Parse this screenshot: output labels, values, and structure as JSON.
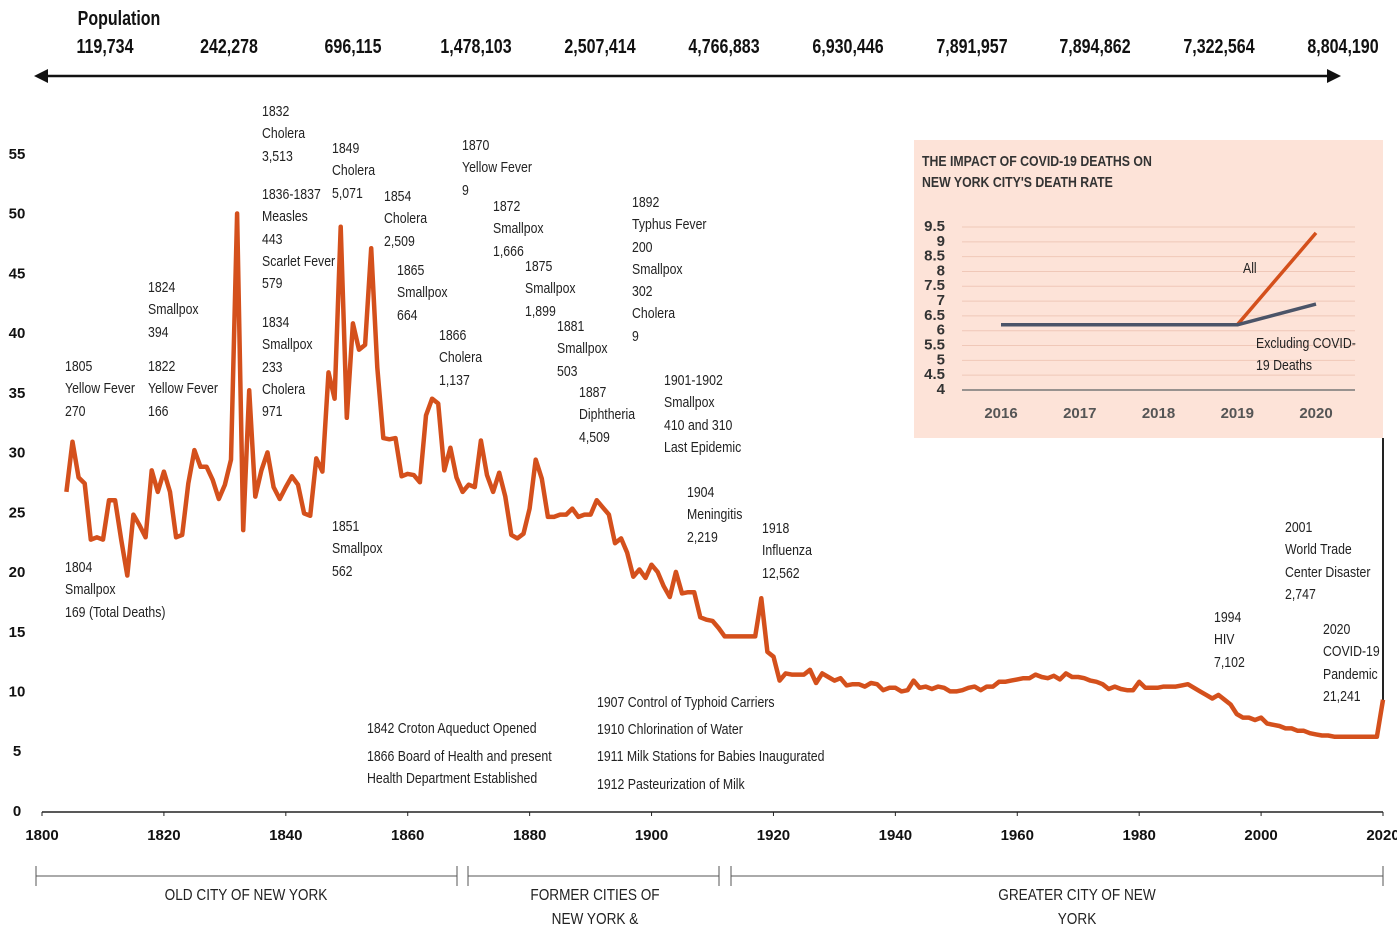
{
  "chart_data": [
    {
      "type": "line",
      "xlim": [
        1800,
        2020
      ],
      "ylim": [
        0,
        55
      ],
      "xticks": [
        1800,
        1820,
        1840,
        1860,
        1880,
        1900,
        1920,
        1940,
        1960,
        1980,
        2000,
        2020
      ],
      "yticks": [
        0,
        5,
        10,
        15,
        20,
        25,
        30,
        35,
        40,
        45,
        50,
        55
      ],
      "grid": false,
      "x": [
        1804,
        1805,
        1806,
        1807,
        1808,
        1809,
        1810,
        1811,
        1812,
        1813,
        1814,
        1815,
        1816,
        1817,
        1818,
        1819,
        1820,
        1821,
        1822,
        1823,
        1824,
        1825,
        1826,
        1827,
        1828,
        1829,
        1830,
        1831,
        1832,
        1833,
        1834,
        1835,
        1836,
        1837,
        1838,
        1839,
        1840,
        1841,
        1842,
        1843,
        1844,
        1845,
        1846,
        1847,
        1848,
        1849,
        1850,
        1851,
        1852,
        1853,
        1854,
        1855,
        1856,
        1857,
        1858,
        1859,
        1860,
        1861,
        1862,
        1863,
        1864,
        1865,
        1866,
        1867,
        1868,
        1869,
        1870,
        1871,
        1872,
        1873,
        1874,
        1875,
        1876,
        1877,
        1878,
        1879,
        1880,
        1881,
        1882,
        1883,
        1884,
        1885,
        1886,
        1887,
        1888,
        1889,
        1890,
        1891,
        1892,
        1893,
        1894,
        1895,
        1896,
        1897,
        1898,
        1899,
        1900,
        1901,
        1902,
        1903,
        1904,
        1905,
        1906,
        1907,
        1908,
        1909,
        1910,
        1911,
        1912,
        1913,
        1914,
        1915,
        1916,
        1917,
        1918,
        1919,
        1920,
        1921,
        1922,
        1923,
        1924,
        1925,
        1926,
        1927,
        1928,
        1929,
        1930,
        1931,
        1932,
        1933,
        1934,
        1935,
        1936,
        1937,
        1938,
        1939,
        1940,
        1941,
        1942,
        1943,
        1944,
        1945,
        1946,
        1947,
        1948,
        1949,
        1950,
        1951,
        1952,
        1953,
        1954,
        1955,
        1956,
        1957,
        1958,
        1959,
        1960,
        1961,
        1962,
        1963,
        1964,
        1965,
        1966,
        1967,
        1968,
        1969,
        1970,
        1971,
        1972,
        1973,
        1974,
        1975,
        1976,
        1977,
        1978,
        1979,
        1980,
        1981,
        1982,
        1983,
        1984,
        1985,
        1986,
        1987,
        1988,
        1989,
        1990,
        1991,
        1992,
        1993,
        1994,
        1995,
        1996,
        1997,
        1998,
        1999,
        2000,
        2001,
        2002,
        2003,
        2004,
        2005,
        2006,
        2007,
        2008,
        2009,
        2010,
        2011,
        2012,
        2013,
        2014,
        2015,
        2016,
        2017,
        2018,
        2019,
        2020
      ],
      "series": [
        {
          "color": "#d4501c",
          "values": [
            26.8,
            31,
            28,
            27.5,
            22.8,
            23,
            22.8,
            26.1,
            26.1,
            22.8,
            19.8,
            24.9,
            24,
            23,
            28.6,
            26.8,
            28.5,
            26.8,
            23,
            23.2,
            27.5,
            30.3,
            28.9,
            28.9,
            27.8,
            26.2,
            27.4,
            29.5,
            50.1,
            23.6,
            35.3,
            26.4,
            28.6,
            30.1,
            27.2,
            26.2,
            27.2,
            28.1,
            27.4,
            25,
            24.8,
            29.6,
            28.5,
            36.8,
            34.6,
            49,
            33,
            40.9,
            38.7,
            39.1,
            47.2,
            37.2,
            31.3,
            31.2,
            31.3,
            28.1,
            28.3,
            28.2,
            27.6,
            33.2,
            34.6,
            34.2,
            28.6,
            30.5,
            28,
            26.8,
            27.4,
            27.2,
            31.1,
            28.2,
            26.8,
            28.4,
            26.4,
            23.2,
            22.9,
            23.3,
            25.4,
            29.5,
            27.9,
            24.7,
            24.7,
            24.9,
            24.9,
            25.4,
            24.7,
            24.9,
            24.9,
            26.1,
            25.5,
            24.9,
            22.5,
            22.9,
            21.7,
            19.7,
            20.3,
            19.6,
            20.7,
            20.1,
            18.9,
            18,
            20.1,
            18.3,
            18.4,
            18.4,
            16.3,
            16.1,
            16,
            15.4,
            14.7,
            14.7,
            14.7,
            14.7,
            14.7,
            14.7,
            17.9,
            13.4,
            13,
            11,
            11.6,
            11.5,
            11.5,
            11.5,
            11.9,
            10.8,
            11.6,
            11.3,
            11,
            11.2,
            10.6,
            10.7,
            10.7,
            10.5,
            10.8,
            10.7,
            10.2,
            10.4,
            10.4,
            10.1,
            10.2,
            11,
            10.4,
            10.5,
            10.3,
            10.5,
            10.4,
            10.1,
            10.1,
            10.2,
            10.4,
            10.5,
            10.2,
            10.5,
            10.5,
            10.9,
            10.9,
            11,
            11.1,
            11.2,
            11.2,
            11.5,
            11.3,
            11.2,
            11.4,
            11.1,
            11.6,
            11.3,
            11.3,
            11.2,
            11,
            10.9,
            10.7,
            10.3,
            10.5,
            10.3,
            10.2,
            10.2,
            10.9,
            10.4,
            10.4,
            10.4,
            10.5,
            10.5,
            10.5,
            10.6,
            10.7,
            10.4,
            10.1,
            9.8,
            9.5,
            9.8,
            9.4,
            9,
            8.2,
            7.9,
            7.9,
            7.7,
            7.9,
            7.4,
            7.3,
            7.2,
            7,
            7,
            6.8,
            6.8,
            6.6,
            6.5,
            6.4,
            6.4,
            6.3,
            6.3,
            6.3,
            6.3,
            6.3,
            6.3,
            6.3,
            6.3,
            9.4
          ]
        }
      ]
    },
    {
      "type": "line",
      "title": [
        "THE IMPACT OF COVID-19 DEATHS ON",
        "NEW YORK CITY'S DEATH RATE"
      ],
      "categories": [
        "2016",
        "2017",
        "2018",
        "2019",
        "2020"
      ],
      "ylim": [
        4,
        9.5
      ],
      "yticks": [
        4,
        4.5,
        5,
        5.5,
        6,
        6.5,
        7,
        7.5,
        8,
        8.5,
        9,
        9.5
      ],
      "grid": true,
      "series": [
        {
          "name": "All",
          "color": "#d4501c",
          "values": [
            6.2,
            6.2,
            6.2,
            6.2,
            9.3
          ]
        },
        {
          "name": "Excluding COVID-19 Deaths",
          "color": "#4b5468",
          "values": [
            6.2,
            6.2,
            6.2,
            6.2,
            6.9
          ]
        }
      ]
    }
  ],
  "population": {
    "title": "Population",
    "values": [
      "119,734",
      "242,278",
      "696,115",
      "1,478,103",
      "2,507,414",
      "4,766,883",
      "6,930,446",
      "7,891,957",
      "7,894,862",
      "7,322,564",
      "8,804,190"
    ]
  },
  "annotations": [
    {
      "lines": [
        "1832",
        "Cholera",
        "3,513"
      ]
    },
    {
      "lines": [
        "1836-1837",
        "Measles",
        "443",
        "Scarlet Fever",
        "579"
      ]
    },
    {
      "lines": [
        "1834",
        "Smallpox",
        "233",
        "Cholera",
        "971"
      ]
    },
    {
      "lines": [
        "1849",
        "Cholera",
        "5,071"
      ]
    },
    {
      "lines": [
        "1854",
        "Cholera",
        "2,509"
      ]
    },
    {
      "lines": [
        "1865",
        "Smallpox",
        "664"
      ]
    },
    {
      "lines": [
        "1866",
        "Cholera",
        "1,137"
      ]
    },
    {
      "lines": [
        "1870",
        "Yellow Fever",
        "9"
      ]
    },
    {
      "lines": [
        "1872",
        "Smallpox",
        "1,666"
      ]
    },
    {
      "lines": [
        "1875",
        "Smallpox",
        "1,899"
      ]
    },
    {
      "lines": [
        "1881",
        "Smallpox",
        "503"
      ]
    },
    {
      "lines": [
        "1887",
        "Diphtheria",
        "4,509"
      ]
    },
    {
      "lines": [
        "1892",
        "Typhus Fever",
        "200",
        "Smallpox",
        "302",
        "Cholera",
        "9"
      ]
    },
    {
      "lines": [
        "1901-1902",
        "Smallpox",
        "410 and 310",
        "Last Epidemic"
      ]
    },
    {
      "lines": [
        "1904",
        "Meningitis",
        "2,219"
      ]
    },
    {
      "lines": [
        "1918",
        "Influenza",
        "12,562"
      ]
    },
    {
      "lines": [
        "1824",
        "Smallpox",
        "394"
      ]
    },
    {
      "lines": [
        "1805",
        "Yellow Fever",
        "270"
      ]
    },
    {
      "lines": [
        "1822",
        "Yellow Fever",
        "166"
      ]
    },
    {
      "lines": [
        "1804",
        "Smallpox",
        "169 (Total Deaths)"
      ]
    },
    {
      "lines": [
        "1851",
        "Smallpox",
        "562"
      ]
    },
    {
      "lines": [
        "1994",
        "HIV",
        "7,102"
      ]
    },
    {
      "lines": [
        "2001",
        "World Trade",
        "Center Disaster",
        "2,747"
      ]
    },
    {
      "lines": [
        "2020",
        "COVID-19",
        "Pandemic",
        "21,241"
      ]
    },
    {
      "lines": [
        "1842 Croton Aqueduct Opened"
      ]
    },
    {
      "lines": [
        "1866 Board of Health and present",
        "Health Department Established"
      ]
    },
    {
      "lines": [
        "1907 Control of Typhoid Carriers"
      ]
    },
    {
      "lines": [
        "1910 Chlorination of Water"
      ]
    },
    {
      "lines": [
        "1911 Milk Stations for Babies Inaugurated"
      ]
    },
    {
      "lines": [
        "1912 Pasteurization of Milk"
      ]
    }
  ],
  "eras": [
    "OLD CITY OF NEW YORK",
    "FORMER CITIES OF NEW YORK & BROOKLYN",
    "GREATER CITY OF NEW YORK"
  ]
}
